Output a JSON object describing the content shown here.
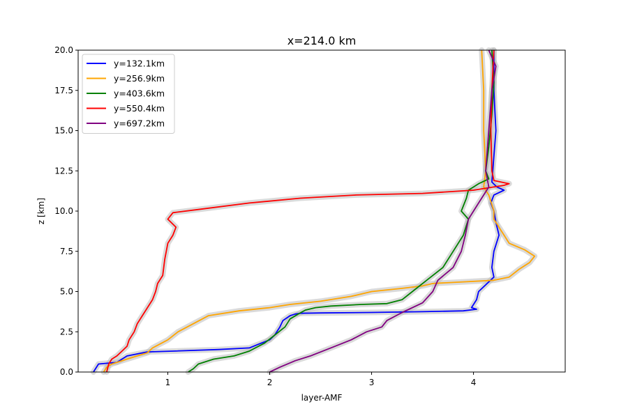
{
  "chart_data": {
    "type": "line",
    "title": "x=214.0 km",
    "xlabel": "layer-AMF",
    "ylabel": "z [km]",
    "xlim": [
      0.12,
      4.9
    ],
    "ylim": [
      0,
      20
    ],
    "xticks": [
      "1",
      "2",
      "3",
      "4"
    ],
    "yticks": [
      "0.0",
      "2.5",
      "5.0",
      "7.5",
      "10.0",
      "12.5",
      "15.0",
      "17.5",
      "20.0"
    ],
    "grid": false,
    "legend_position": "top-left",
    "uncertainty_band_color": "#bbbbbb",
    "series": [
      {
        "name": "y=132.1km",
        "color": "#0000ff",
        "x": [
          0.27,
          0.32,
          0.5,
          0.6,
          0.8,
          1.05,
          1.5,
          1.8,
          1.88,
          2.0,
          2.05,
          2.1,
          2.13,
          2.2,
          2.25,
          2.3,
          2.5,
          3.0,
          3.5,
          3.9,
          4.03,
          3.98,
          4.03,
          4.05,
          4.2,
          4.18,
          4.2,
          4.25,
          4.22,
          4.2,
          4.17,
          4.2,
          4.3,
          4.23,
          4.18,
          4.22,
          4.2,
          4.2
        ],
        "y": [
          0.0,
          0.5,
          0.6,
          1.0,
          1.25,
          1.3,
          1.4,
          1.5,
          1.7,
          2.0,
          2.3,
          2.8,
          3.2,
          3.5,
          3.6,
          3.65,
          3.67,
          3.7,
          3.75,
          3.8,
          3.9,
          4.0,
          4.5,
          5.0,
          5.9,
          6.5,
          7.5,
          8.5,
          9.3,
          10.0,
          10.5,
          11.0,
          11.3,
          11.5,
          11.8,
          15.0,
          17.5,
          20.0
        ]
      },
      {
        "name": "y=256.9km",
        "color": "#ffa500",
        "x": [
          0.37,
          0.4,
          0.45,
          0.6,
          0.7,
          0.8,
          0.85,
          1.0,
          1.1,
          1.25,
          1.4,
          1.7,
          2.0,
          2.2,
          2.5,
          2.8,
          3.0,
          3.3,
          3.5,
          3.6,
          3.9,
          4.2,
          4.35,
          4.45,
          4.55,
          4.6,
          4.5,
          4.35,
          4.3,
          4.25,
          4.2,
          4.2,
          4.15,
          4.1,
          4.12,
          4.1,
          4.1,
          4.08
        ],
        "y": [
          0.0,
          0.3,
          0.5,
          0.8,
          1.0,
          1.2,
          1.5,
          2.0,
          2.5,
          3.0,
          3.5,
          3.8,
          4.0,
          4.2,
          4.4,
          4.7,
          5.0,
          5.2,
          5.35,
          5.5,
          5.6,
          5.7,
          5.9,
          6.4,
          6.8,
          7.2,
          7.6,
          8.0,
          8.5,
          9.0,
          9.5,
          10.0,
          11.0,
          11.5,
          12.5,
          15.0,
          17.5,
          20.0
        ]
      },
      {
        "name": "y=403.6km",
        "color": "#008000",
        "x": [
          1.2,
          1.25,
          1.3,
          1.45,
          1.65,
          1.8,
          1.95,
          2.05,
          2.15,
          2.2,
          2.28,
          2.35,
          2.45,
          2.6,
          2.9,
          3.15,
          3.3,
          3.4,
          3.5,
          3.7,
          3.8,
          3.9,
          3.95,
          3.88,
          3.93,
          3.95,
          4.05,
          4.15,
          4.12,
          4.15,
          4.18,
          4.2,
          4.18
        ],
        "y": [
          0.0,
          0.2,
          0.5,
          0.8,
          1.0,
          1.3,
          1.8,
          2.3,
          2.8,
          3.3,
          3.6,
          3.85,
          4.0,
          4.1,
          4.2,
          4.25,
          4.5,
          5.0,
          5.5,
          6.5,
          7.5,
          8.5,
          9.5,
          10.0,
          10.8,
          11.3,
          11.7,
          12.0,
          12.5,
          14.0,
          16.0,
          18.0,
          20.0
        ]
      },
      {
        "name": "y=550.4km",
        "color": "#ff0000",
        "x": [
          0.4,
          0.42,
          0.45,
          0.5,
          0.55,
          0.6,
          0.62,
          0.67,
          0.7,
          0.75,
          0.8,
          0.85,
          0.88,
          0.9,
          0.95,
          0.97,
          1.0,
          1.05,
          1.08,
          1.0,
          1.05,
          1.3,
          1.8,
          2.3,
          2.85,
          3.5,
          4.0,
          4.3,
          4.35,
          4.2,
          4.18,
          4.17,
          4.18,
          4.2
        ],
        "y": [
          0.0,
          0.5,
          0.8,
          1.0,
          1.3,
          1.6,
          2.0,
          2.5,
          3.0,
          3.5,
          4.0,
          4.5,
          5.0,
          5.5,
          6.0,
          7.0,
          8.0,
          8.5,
          9.0,
          9.5,
          9.9,
          10.1,
          10.5,
          10.8,
          11.0,
          11.1,
          11.3,
          11.6,
          11.7,
          11.9,
          12.5,
          15.0,
          17.5,
          20.0
        ]
      },
      {
        "name": "y=697.2km",
        "color": "#800080",
        "x": [
          2.0,
          2.1,
          2.25,
          2.4,
          2.6,
          2.8,
          2.95,
          3.1,
          3.15,
          3.3,
          3.5,
          3.6,
          3.65,
          3.8,
          3.88,
          3.92,
          3.95,
          4.05,
          4.15,
          4.12,
          4.15,
          4.18,
          4.22,
          4.15
        ],
        "y": [
          0.0,
          0.3,
          0.7,
          1.0,
          1.5,
          2.0,
          2.5,
          2.8,
          3.2,
          3.7,
          4.3,
          5.0,
          5.7,
          6.5,
          7.5,
          8.5,
          9.5,
          10.5,
          11.5,
          12.5,
          15.0,
          17.5,
          19.0,
          20.0
        ]
      }
    ]
  }
}
